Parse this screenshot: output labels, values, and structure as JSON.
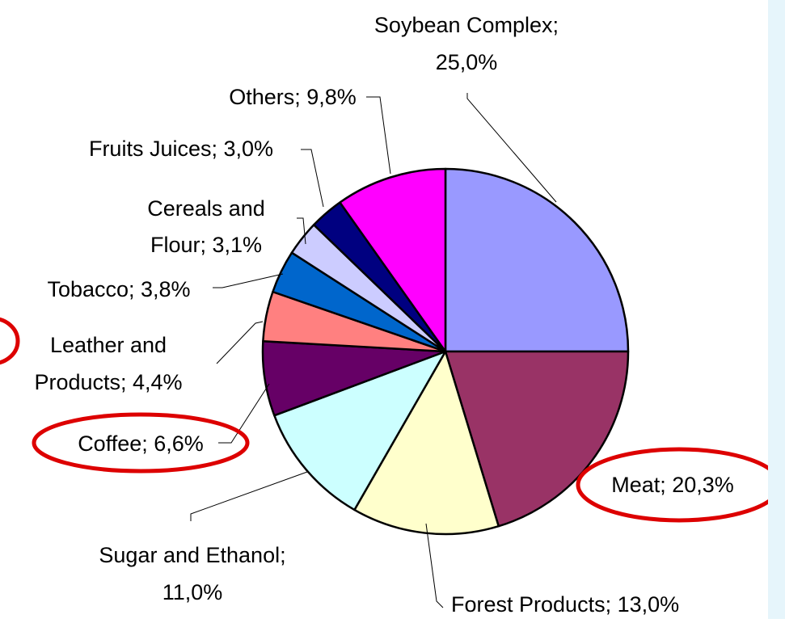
{
  "chart_data": {
    "type": "pie",
    "start": "12 o'clock",
    "direction": "clockwise",
    "slices": [
      {
        "label": "Soybean Complex",
        "value": 25.0,
        "label_lines": [
          "Soybean Complex;",
          "25,0%"
        ],
        "color": "#9999ff",
        "highlighted": false
      },
      {
        "label": "Meat",
        "value": 20.3,
        "label_lines": [
          "Meat; 20,3%"
        ],
        "color": "#993366",
        "highlighted": true
      },
      {
        "label": "Forest Products",
        "value": 13.0,
        "label_lines": [
          "Forest Products; 13,0%"
        ],
        "color": "#ffffcc",
        "highlighted": false
      },
      {
        "label": "Sugar and Ethanol",
        "value": 11.0,
        "label_lines": [
          "Sugar and Ethanol;",
          "11,0%"
        ],
        "color": "#ccffff",
        "highlighted": false
      },
      {
        "label": "Coffee",
        "value": 6.6,
        "label_lines": [
          "Coffee; 6,6%"
        ],
        "color": "#660066",
        "highlighted": true
      },
      {
        "label": "Leather and Products",
        "value": 4.4,
        "label_lines": [
          "Leather and",
          "Products; 4,4%"
        ],
        "color": "#ff8080",
        "highlighted": true
      },
      {
        "label": "Tobacco",
        "value": 3.8,
        "label_lines": [
          "Tobacco; 3,8%"
        ],
        "color": "#0066cc",
        "highlighted": false
      },
      {
        "label": "Cereals and Flour",
        "value": 3.1,
        "label_lines": [
          "Cereals and",
          "Flour; 3,1%"
        ],
        "color": "#ccccff",
        "highlighted": false
      },
      {
        "label": "Fruits Juices",
        "value": 3.0,
        "label_lines": [
          "Fruits Juices; 3,0%"
        ],
        "color": "#000080",
        "highlighted": false
      },
      {
        "label": "Others",
        "value": 9.8,
        "label_lines": [
          "Others; 9,8%"
        ],
        "color": "#ff00ff",
        "highlighted": false
      }
    ],
    "highlight_color": "#dd0000",
    "right_strip_color": "#e6f5fb"
  }
}
